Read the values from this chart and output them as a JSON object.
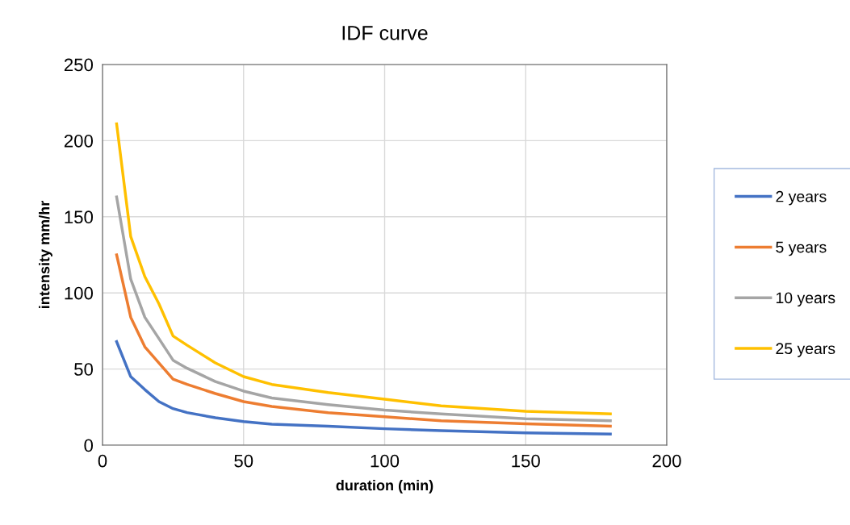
{
  "chart_data": {
    "type": "line",
    "title": "IDF curve",
    "xlabel": "duration (min)",
    "ylabel": "intensity mm/hr",
    "x": [
      5,
      10,
      15,
      20,
      25,
      30,
      40,
      50,
      60,
      80,
      100,
      120,
      150,
      180
    ],
    "series": [
      {
        "name": "2 years",
        "color": "#4472c4",
        "values": [
          68,
          45,
          36.5,
          28.6,
          24,
          21.4,
          18,
          15.5,
          13.8,
          12.5,
          10.8,
          9.5,
          8.1,
          7.3
        ]
      },
      {
        "name": "5 years",
        "color": "#ed7d31",
        "values": [
          125,
          84,
          64.6,
          54,
          43.4,
          39.9,
          33.9,
          28.6,
          25.4,
          21.3,
          18.7,
          16,
          14,
          12.5
        ]
      },
      {
        "name": "10 years",
        "color": "#a5a5a5",
        "values": [
          163,
          109,
          84,
          70,
          55.8,
          50.5,
          41.8,
          35.5,
          31,
          26.6,
          23,
          20.5,
          17.3,
          16
        ]
      },
      {
        "name": "25 years",
        "color": "#ffc000",
        "values": [
          211,
          137,
          110.7,
          92.8,
          71.7,
          65.6,
          54,
          45,
          39.9,
          34.6,
          30.2,
          25.8,
          22.2,
          20.5
        ]
      }
    ],
    "xlim": [
      0,
      200
    ],
    "xticks": [
      0,
      50,
      100,
      150,
      200
    ],
    "ylim": [
      0,
      250
    ],
    "yticks": [
      0,
      50,
      100,
      150,
      200,
      250
    ],
    "grid": true,
    "legend": "right",
    "marker": "none",
    "line_style": "solid"
  }
}
